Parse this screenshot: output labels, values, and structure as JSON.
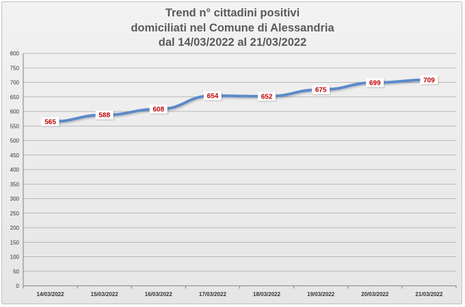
{
  "chart_data": {
    "type": "line",
    "title_lines": [
      "Trend n° cittadini positivi",
      "domiciliati nel Comune di Alessandria",
      "dal 14/03/2022 al 21/03/2022"
    ],
    "categories": [
      "14/03/2022",
      "15/03/2022",
      "16/03/2022",
      "17/03/2022",
      "18/03/2022",
      "19/03/2022",
      "20/03/2022",
      "21/03/2022"
    ],
    "values": [
      565,
      588,
      608,
      654,
      652,
      675,
      699,
      709
    ],
    "ylim": [
      0,
      800
    ],
    "yticks": [
      0,
      50,
      100,
      150,
      200,
      250,
      300,
      350,
      400,
      450,
      500,
      550,
      600,
      650,
      700,
      750,
      800
    ],
    "grid": true,
    "legend": "none",
    "colors": {
      "line": "#5b8ac9",
      "label": "#c00000"
    }
  }
}
